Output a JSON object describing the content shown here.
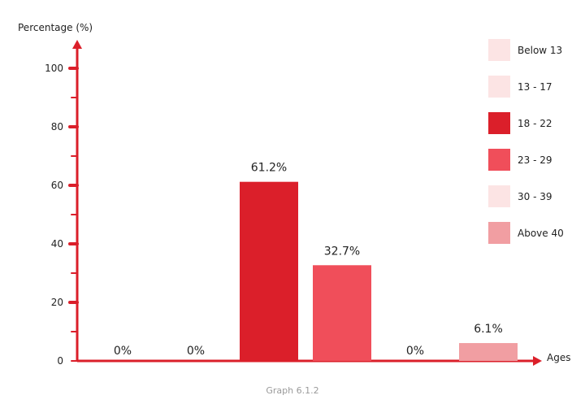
{
  "chart_data": {
    "type": "bar",
    "ylabel": "Percentage (%)",
    "xlabel": "Ages",
    "ylim": [
      0,
      100
    ],
    "y_ticks": [
      "0",
      "20",
      "40",
      "60",
      "80",
      "100"
    ],
    "grid": false,
    "legend_position": "right",
    "categories": [
      "Below 13",
      "13 - 17",
      "18 - 22",
      "23 - 29",
      "30 - 39",
      "Above 40"
    ],
    "values": [
      0,
      0,
      61.2,
      32.7,
      0,
      6.1
    ],
    "value_labels": [
      "0%",
      "0%",
      "61.2%",
      "32.7%",
      "0%",
      "6.1%"
    ],
    "colors": [
      "#fce4e4",
      "#fce4e4",
      "#db1f2a",
      "#f04e5a",
      "#fce4e4",
      "#f19ea2"
    ],
    "axis_color": "#db1f2a"
  },
  "caption": "Graph 6.1.2"
}
